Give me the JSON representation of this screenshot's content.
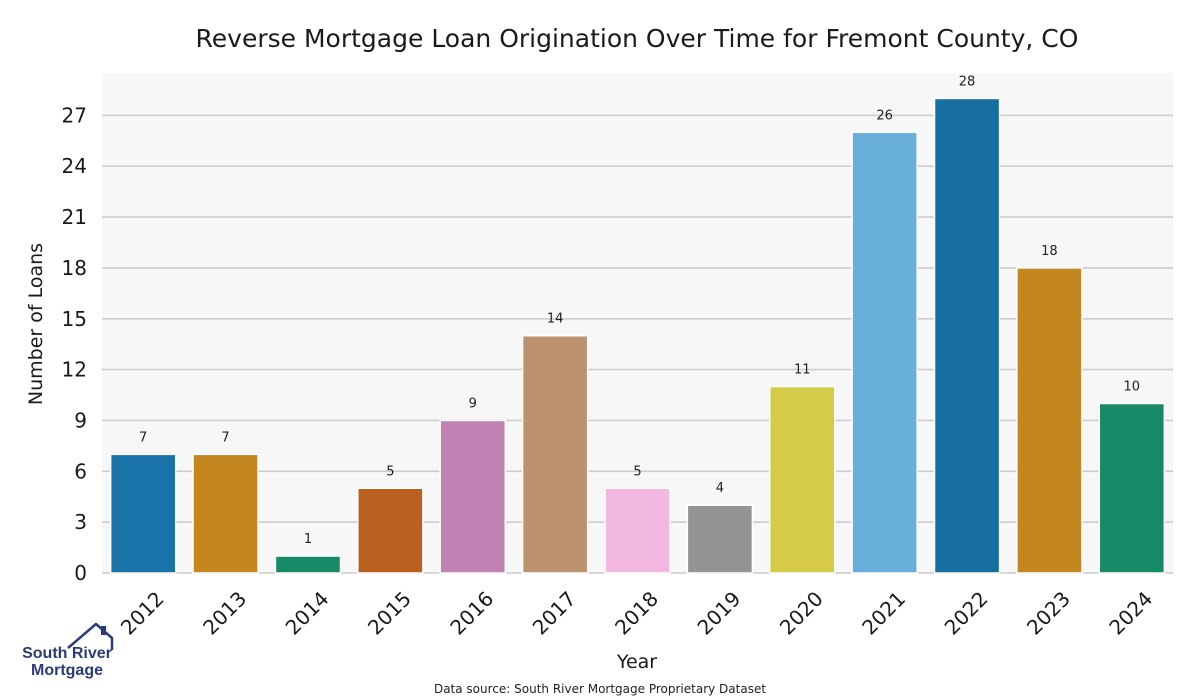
{
  "chart_data": {
    "type": "bar",
    "title": "Reverse Mortgage Loan Origination Over Time for Fremont County, CO",
    "xlabel": "Year",
    "ylabel": "Number of Loans",
    "categories": [
      "2012",
      "2013",
      "2014",
      "2015",
      "2016",
      "2017",
      "2018",
      "2019",
      "2020",
      "2021",
      "2022",
      "2023",
      "2024"
    ],
    "values": [
      7,
      7,
      1,
      5,
      9,
      14,
      5,
      4,
      11,
      26,
      28,
      18,
      10
    ],
    "bar_colors": [
      "#1a73a8",
      "#c4871f",
      "#178a68",
      "#ba611f",
      "#c281b5",
      "#bd926f",
      "#f2b8e1",
      "#949494",
      "#d6cb49",
      "#68b0d9",
      "#176ea0",
      "#c4871f",
      "#178a68"
    ],
    "ylim": [
      0,
      29.5
    ],
    "yticks": [
      0,
      3,
      6,
      9,
      12,
      15,
      18,
      21,
      24,
      27
    ],
    "grid": true,
    "plot_background": "#f7f7f7",
    "grid_color": "#cccccc"
  },
  "footer": {
    "source": "Data source: South River Mortgage Proprietary Dataset"
  },
  "logo": {
    "line1": "South River",
    "line2": "Mortgage",
    "color": "#2b3a78"
  }
}
